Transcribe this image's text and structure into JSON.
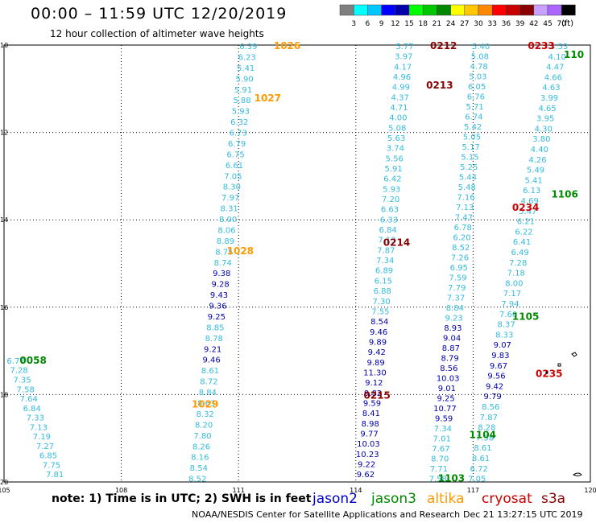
{
  "header": {
    "title": "00:00 – 11:59 UTC 12/20/2019",
    "subtitle": "12 hour collection of altimeter wave heights"
  },
  "colorbar": {
    "unit": "(ft)",
    "ticks": [
      "3",
      "6",
      "9",
      "12",
      "15",
      "18",
      "21",
      "24",
      "27",
      "30",
      "33",
      "36",
      "39",
      "42",
      "45",
      "70"
    ],
    "colors": [
      "#7f7f7f",
      "#00ffff",
      "#00c8ff",
      "#0000ff",
      "#0000aa",
      "#00ff00",
      "#00c800",
      "#008800",
      "#ffff00",
      "#ffc800",
      "#ff8800",
      "#ff0000",
      "#c80000",
      "#880000",
      "#c8a0ff",
      "#aa66ff",
      "#000000"
    ]
  },
  "map": {
    "lon_ticks": [
      "105",
      "108",
      "111",
      "114",
      "117",
      "120"
    ],
    "lat_ticks": [
      "10",
      "12",
      "14",
      "16",
      "18",
      "20"
    ],
    "legend_colors": {
      "jason2": "#0000c8",
      "jason3": "#008800",
      "altika": "#ff9900",
      "cryosat": "#cc0000",
      "s3a": "#880000",
      "cyan": "#33bbdd",
      "blue": "#0000aa"
    }
  },
  "passes": [
    {
      "label": "1026",
      "color": "#ff9900",
      "lon": 111.9,
      "lat": 10.0
    },
    {
      "label": "1027",
      "color": "#ff9900",
      "lon": 111.4,
      "lat": 11.2
    },
    {
      "label": "1028",
      "color": "#ff9900",
      "lon": 110.7,
      "lat": 14.7
    },
    {
      "label": "1029",
      "color": "#ff9900",
      "lon": 109.8,
      "lat": 18.2
    },
    {
      "label": "0058",
      "color": "#008800",
      "lon": 105.4,
      "lat": 17.2
    },
    {
      "label": "0212",
      "color": "#880000",
      "lon": 115.9,
      "lat": 10.0
    },
    {
      "label": "0213",
      "color": "#880000",
      "lon": 115.8,
      "lat": 10.9
    },
    {
      "label": "0214",
      "color": "#880000",
      "lon": 114.7,
      "lat": 14.5
    },
    {
      "label": "0215",
      "color": "#880000",
      "lon": 114.2,
      "lat": 18.0
    },
    {
      "label": "0233",
      "color": "#cc0000",
      "lon": 118.4,
      "lat": 10.0
    },
    {
      "label": "0234",
      "color": "#cc0000",
      "lon": 118.0,
      "lat": 13.7
    },
    {
      "label": "0235",
      "color": "#cc0000",
      "lon": 118.6,
      "lat": 17.5
    },
    {
      "label": "1106",
      "color": "#008800",
      "lon": 119.0,
      "lat": 13.4
    },
    {
      "label": "1105",
      "color": "#008800",
      "lon": 118.0,
      "lat": 16.2
    },
    {
      "label": "1104",
      "color": "#008800",
      "lon": 116.9,
      "lat": 18.9
    },
    {
      "label": "1103",
      "color": "#008800",
      "lon": 116.1,
      "lat": 19.9
    },
    {
      "label": "110",
      "color": "#008800",
      "lon": 119.6,
      "lat": 10.2
    }
  ],
  "tracks": [
    {
      "name": "track-1026",
      "start": [
        111.25,
        10.0
      ],
      "end": [
        109.95,
        19.9
      ],
      "values": [
        "6.39",
        "6.23",
        "5.41",
        "5.90",
        "5.91",
        "5.88",
        "5.93",
        "6.32",
        "6.73",
        "6.79",
        "6.75",
        "6.61",
        "7.05",
        "8.30",
        "7.97",
        "8.31",
        "8.00",
        "8.06",
        "8.89",
        "8.75",
        "8.74",
        "9.38",
        "9.28",
        "9.43",
        "9.36",
        "9.25",
        "8.85",
        "8.78",
        "9.21",
        "9.46",
        "8.61",
        "8.72",
        "8.84",
        "8.63",
        "8.32",
        "8.20",
        "7.80",
        "8.26",
        "8.16",
        "8.54",
        "8.52"
      ],
      "colors": [
        "c",
        "c",
        "c",
        "c",
        "c",
        "c",
        "c",
        "c",
        "c",
        "c",
        "c",
        "c",
        "c",
        "c",
        "c",
        "c",
        "c",
        "c",
        "c",
        "c",
        "c",
        "b",
        "b",
        "b",
        "b",
        "b",
        "c",
        "c",
        "b",
        "b",
        "c",
        "c",
        "c",
        "c",
        "c",
        "c",
        "c",
        "c",
        "c",
        "c",
        "c"
      ]
    },
    {
      "name": "track-0058",
      "start": [
        105.3,
        17.2
      ],
      "end": [
        106.3,
        19.8
      ],
      "values": [
        "6.77",
        "7.28",
        "7.35",
        "7.58",
        "7.64",
        "6.84",
        "7.33",
        "7.13",
        "7.19",
        "7.27",
        "6.85",
        "7.75",
        "7.81"
      ],
      "colors": [
        "c",
        "c",
        "c",
        "c",
        "c",
        "c",
        "c",
        "c",
        "c",
        "c",
        "c",
        "c",
        "c"
      ]
    },
    {
      "name": "track-0212",
      "start": [
        115.25,
        10.0
      ],
      "end": [
        114.25,
        19.8
      ],
      "values": [
        "5.77",
        "3.97",
        "4.17",
        "4.96",
        "4.99",
        "4.37",
        "4.71",
        "4.00",
        "5.08",
        "5.63",
        "3.74",
        "5.56",
        "5.91",
        "6.42",
        "5.93",
        "7.20",
        "6.63",
        "6.33",
        "6.84",
        "7.13",
        "7.87",
        "7.34",
        "6.89",
        "6.15",
        "6.88",
        "7.30",
        "7.55",
        "8.54",
        "9.46",
        "9.89",
        "9.42",
        "9.89",
        "11.30",
        "9.12",
        "9.82",
        "9.59",
        "8.41",
        "8.98",
        "9.77",
        "10.03",
        "10.23",
        "9.22",
        "9.62"
      ],
      "colors": [
        "c",
        "c",
        "c",
        "c",
        "c",
        "c",
        "c",
        "c",
        "c",
        "c",
        "c",
        "c",
        "c",
        "c",
        "c",
        "c",
        "c",
        "c",
        "c",
        "c",
        "c",
        "c",
        "c",
        "c",
        "c",
        "c",
        "c",
        "b",
        "b",
        "b",
        "b",
        "b",
        "b",
        "b",
        "b",
        "b",
        "b",
        "b",
        "b",
        "b",
        "b",
        "b",
        "b"
      ]
    },
    {
      "name": "track-0233",
      "start": [
        117.2,
        10.0
      ],
      "end": [
        116.1,
        19.9
      ],
      "values": [
        "5.40",
        "5.08",
        "4.78",
        "5.03",
        "6.05",
        "6.76",
        "5.71",
        "6.74",
        "5.42",
        "5.05",
        "5.17",
        "5.15",
        "5.25",
        "5.44",
        "5.48",
        "7.16",
        "7.13",
        "7.47",
        "6.78",
        "6.20",
        "8.52",
        "7.26",
        "6.95",
        "7.59",
        "7.79",
        "7.37",
        "8.84",
        "9.23",
        "8.93",
        "9.04",
        "8.87",
        "8.79",
        "8.56",
        "10.03",
        "9.01",
        "9.25",
        "10.77",
        "9.59",
        "7.34",
        "7.01",
        "7.67",
        "8.70",
        "7.71",
        "7.58"
      ],
      "colors": [
        "c",
        "c",
        "c",
        "c",
        "c",
        "c",
        "c",
        "c",
        "c",
        "c",
        "c",
        "c",
        "c",
        "c",
        "c",
        "c",
        "c",
        "c",
        "c",
        "c",
        "c",
        "c",
        "c",
        "c",
        "c",
        "c",
        "c",
        "c",
        "b",
        "b",
        "b",
        "b",
        "b",
        "b",
        "b",
        "b",
        "b",
        "b",
        "c",
        "c",
        "c",
        "c",
        "c",
        "c"
      ]
    },
    {
      "name": "track-1106",
      "start": [
        119.2,
        10.0
      ],
      "end": [
        117.1,
        19.9
      ],
      "values": [
        "3.53",
        "4.10",
        "4.47",
        "4.66",
        "4.63",
        "3.99",
        "4.65",
        "3.95",
        "4.30",
        "3.80",
        "4.40",
        "4.26",
        "5.49",
        "5.41",
        "6.13",
        "4.69",
        "5.47",
        "6.21",
        "6.22",
        "6.41",
        "6.49",
        "7.28",
        "7.18",
        "8.00",
        "7.17",
        "7.94",
        "7.60",
        "8.37",
        "8.33",
        "9.07",
        "9.83",
        "9.67",
        "9.56",
        "9.42",
        "9.79",
        "8.56",
        "7.87",
        "8.28",
        "7.58",
        "8.61",
        "8.61",
        "6.72",
        "7.05"
      ],
      "colors": [
        "c",
        "c",
        "c",
        "c",
        "c",
        "c",
        "c",
        "c",
        "c",
        "c",
        "c",
        "c",
        "c",
        "c",
        "c",
        "c",
        "c",
        "c",
        "c",
        "c",
        "c",
        "c",
        "c",
        "c",
        "c",
        "c",
        "c",
        "c",
        "c",
        "b",
        "b",
        "b",
        "b",
        "b",
        "b",
        "c",
        "c",
        "c",
        "c",
        "c",
        "c",
        "c",
        "c"
      ]
    }
  ]
}
